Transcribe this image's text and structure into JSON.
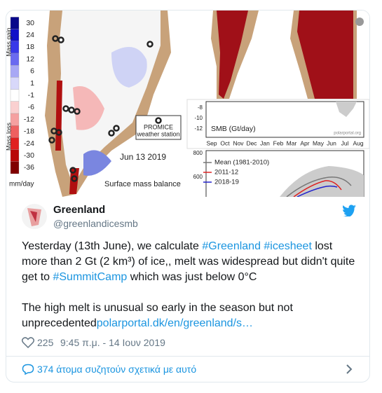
{
  "image": {
    "colorbar": {
      "labels": [
        30,
        24,
        18,
        12,
        6,
        1,
        -1,
        -6,
        -12,
        -18,
        -24,
        -30,
        -36
      ],
      "unit": "mm/day",
      "gain": "Mass gain",
      "loss": "Mass loss"
    },
    "map": {
      "legend": [
        "PROMICE",
        "weather station"
      ],
      "date": "Jun 13 2019",
      "caption": "Surface mass balance"
    },
    "smb_chart": {
      "yticks": [
        -8,
        -10,
        -12
      ],
      "label": "SMB (Gt/day)",
      "source": "polarportal.org",
      "months": [
        "Sep",
        "Oct",
        "Nov",
        "Dec",
        "Jan",
        "Feb",
        "Mar",
        "Apr",
        "May",
        "Jun",
        "Jul",
        "Aug"
      ]
    },
    "acc_chart": {
      "yticks": [
        800,
        600
      ],
      "legend": [
        "Mean (1981-2010)",
        "2011-12",
        "2018-19"
      ]
    }
  },
  "tweet": {
    "name": "Greenland",
    "handle": "@greenlandicesmb",
    "paragraphs": [
      [
        {
          "text": "Yesterday (13th June), we calculate "
        },
        {
          "text": "#Greenland #icesheet",
          "link": true
        },
        {
          "text": " lost more than 2 Gt (2 km³) of ice,, melt was widespread but didn't quite get to "
        },
        {
          "text": "#SummitCamp",
          "link": true
        },
        {
          "text": " which was just below 0°C"
        }
      ],
      [
        {
          "text": "The high melt is unusual so early in the season but not unprecedented"
        },
        {
          "text": "polarportal.dk/en/greenland/s…",
          "link": true
        }
      ]
    ],
    "likes": "225",
    "time": "9:45 π.μ. - 14 Ιουν 2019",
    "conversation": "374 άτομα συζητούν σχετικά με αυτό"
  }
}
